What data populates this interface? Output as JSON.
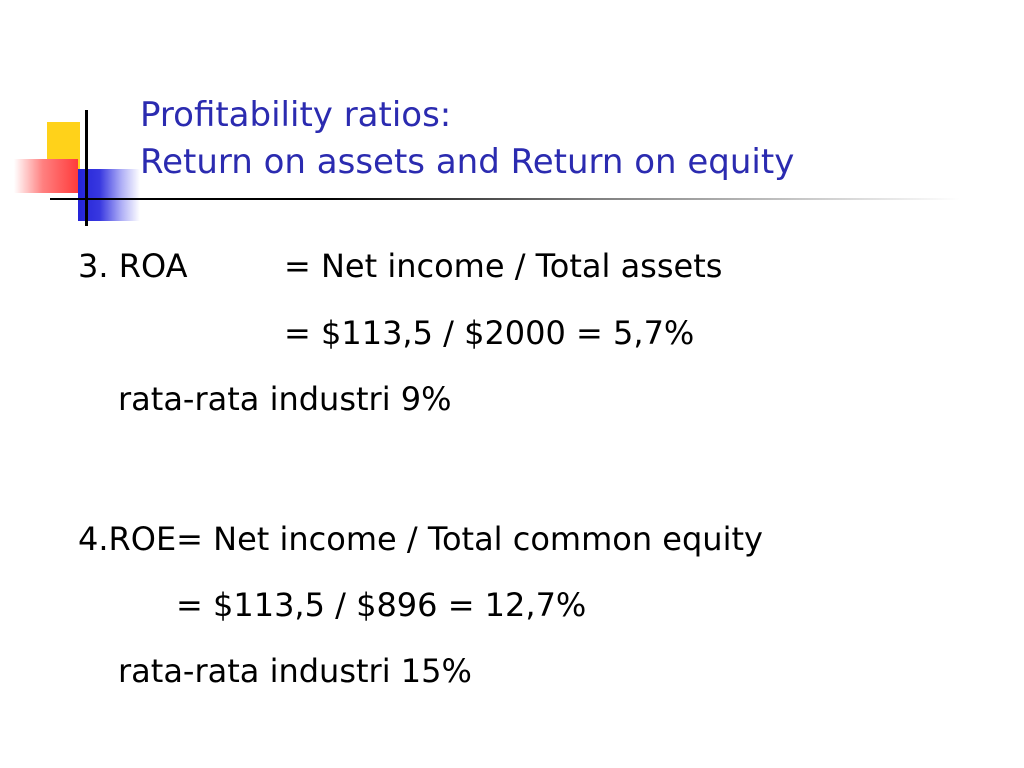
{
  "slide": {
    "title_line1": "Profitability ratios:",
    "title_line2": "Return on assets and Return on equity",
    "roa": {
      "label": "3. ROA",
      "formula": "= Net income / Total assets",
      "calculation": "= $113,5 / $2000 = 5,7%",
      "industry": "rata-rata industri 9%"
    },
    "roe": {
      "formula": "4.ROE= Net income / Total common equity",
      "calculation": "= $113,5 / $896 = 12,7%",
      "industry": "rata-rata industri 15%"
    }
  },
  "colors": {
    "title": "#2b2bb0",
    "deco_yellow": "#ffd21a",
    "deco_red": "#ff3b3b",
    "deco_blue": "#2424d8"
  }
}
